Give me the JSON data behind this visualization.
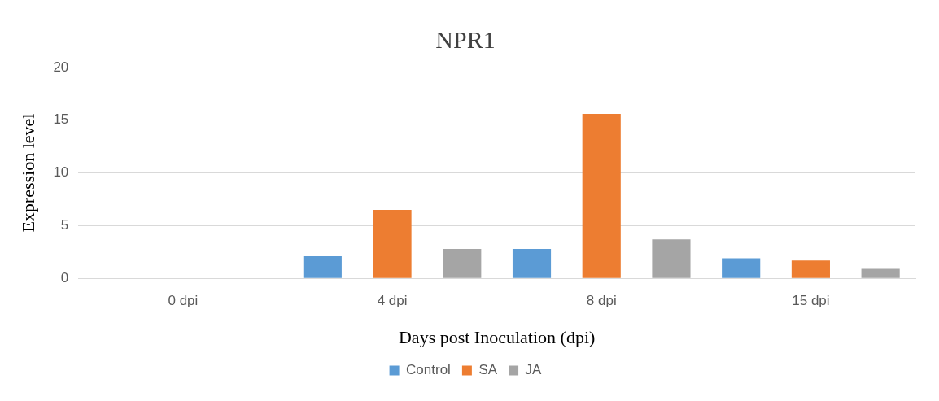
{
  "chart_data": {
    "type": "bar",
    "title": "NPR1",
    "xlabel": "Days post Inoculation (dpi)",
    "ylabel": "Expression level",
    "categories": [
      "0 dpi",
      "4 dpi",
      "8 dpi",
      "15 dpi"
    ],
    "series": [
      {
        "name": "Control",
        "color": "#5b9bd5",
        "values": [
          0,
          2.1,
          2.8,
          1.9
        ]
      },
      {
        "name": "SA",
        "color": "#ed7d31",
        "values": [
          0,
          6.5,
          15.6,
          1.7
        ]
      },
      {
        "name": "JA",
        "color": "#a5a5a5",
        "values": [
          0,
          2.8,
          3.7,
          0.9
        ]
      }
    ],
    "ylim": [
      0,
      20
    ],
    "yticks": [
      0,
      5,
      10,
      15,
      20
    ],
    "grid": "y",
    "legend": "bottom"
  }
}
